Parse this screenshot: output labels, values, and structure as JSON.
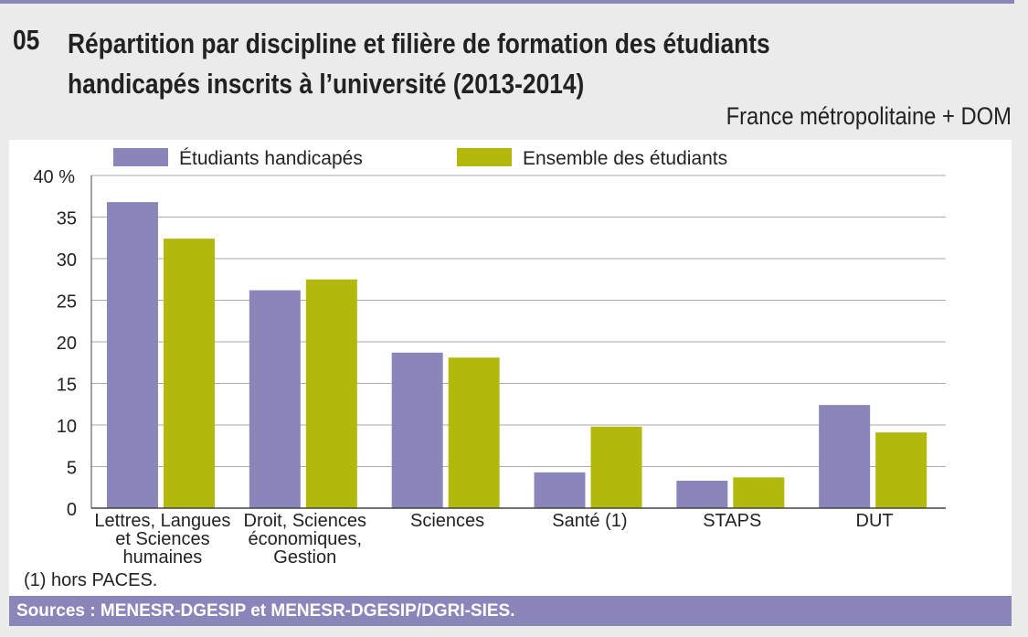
{
  "header": {
    "number": "05",
    "title": "Répartition par discipline et filière de formation des étudiants handicapés inscrits à l’université  (2013-2014)",
    "subtitle": "France métropolitaine + DOM"
  },
  "footnote": "(1) hors PACES.",
  "sources": "Sources : MENESR-DGESIP et MENESR-DGESIP/DGRI-SIES.",
  "chart_data": {
    "type": "bar",
    "categories": [
      [
        "Lettres, Langues",
        "et Sciences",
        "humaines"
      ],
      [
        "Droit, Sciences",
        "économiques,",
        "Gestion"
      ],
      [
        "Sciences"
      ],
      [
        "Santé (1)"
      ],
      [
        "STAPS"
      ],
      [
        "DUT"
      ]
    ],
    "series": [
      {
        "name": "Étudiants handicapés",
        "color": "#8a86ba",
        "values": [
          36.8,
          26.2,
          18.7,
          4.3,
          3.3,
          12.4
        ]
      },
      {
        "name": "Ensemble des étudiants",
        "color": "#b2b80c",
        "values": [
          32.4,
          27.5,
          18.1,
          9.8,
          3.7,
          9.1
        ]
      }
    ],
    "yticks": [
      "0",
      "5",
      "10",
      "15",
      "20",
      "25",
      "30",
      "35",
      "40 %"
    ],
    "ylim": [
      0,
      40
    ],
    "grid": true,
    "legend": "top"
  }
}
